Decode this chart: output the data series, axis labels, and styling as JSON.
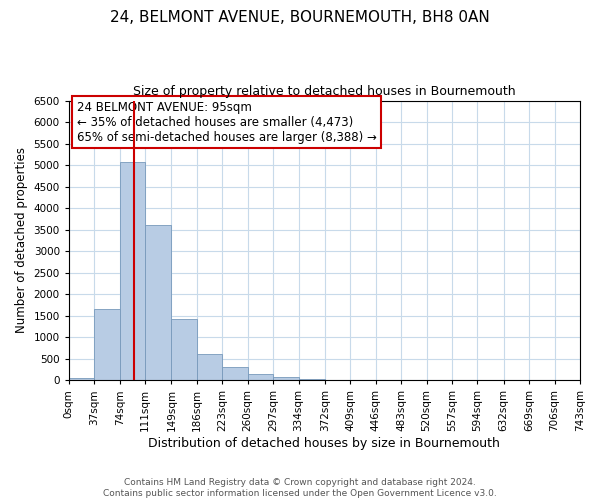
{
  "title": "24, BELMONT AVENUE, BOURNEMOUTH, BH8 0AN",
  "subtitle": "Size of property relative to detached houses in Bournemouth",
  "xlabel": "Distribution of detached houses by size in Bournemouth",
  "ylabel": "Number of detached properties",
  "footer_line1": "Contains HM Land Registry data © Crown copyright and database right 2024.",
  "footer_line2": "Contains public sector information licensed under the Open Government Licence v3.0.",
  "annotation_line1": "24 BELMONT AVENUE: 95sqm",
  "annotation_line2": "← 35% of detached houses are smaller (4,473)",
  "annotation_line3": "65% of semi-detached houses are larger (8,388) →",
  "bin_edges": [
    0,
    37,
    74,
    111,
    149,
    186,
    223,
    260,
    297,
    334,
    372,
    409,
    446,
    483,
    520,
    557,
    594,
    632,
    669,
    706,
    743
  ],
  "bin_counts": [
    50,
    1650,
    5080,
    3600,
    1430,
    620,
    310,
    155,
    75,
    30,
    15,
    5,
    0,
    0,
    0,
    0,
    0,
    0,
    0,
    0
  ],
  "property_size": 95,
  "bar_color": "#b8cce4",
  "bar_edge_color": "#7799bb",
  "vline_color": "#cc0000",
  "annotation_box_edge_color": "#cc0000",
  "background_color": "#ffffff",
  "grid_color": "#c8daea",
  "ylim": [
    0,
    6500
  ],
  "yticks": [
    0,
    500,
    1000,
    1500,
    2000,
    2500,
    3000,
    3500,
    4000,
    4500,
    5000,
    5500,
    6000,
    6500
  ],
  "tick_label_size": 7.5,
  "title_fontsize": 11,
  "subtitle_fontsize": 9,
  "xlabel_fontsize": 9,
  "ylabel_fontsize": 8.5,
  "footer_fontsize": 6.5,
  "annotation_fontsize": 8.5
}
